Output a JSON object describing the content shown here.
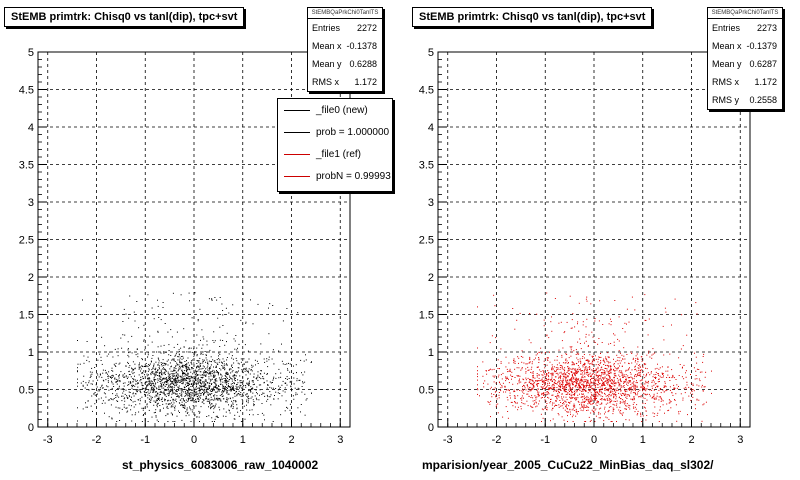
{
  "chart_data": [
    {
      "type": "scatter",
      "title": "StEMB primtrk: Chisq0 vs tanl(dip), tpc+svt",
      "xlabel": "st_physics_6083006_raw_1040002",
      "ylabel": "",
      "xlim": [
        -3.2,
        3.2
      ],
      "ylim": [
        0,
        5
      ],
      "x_ticks": [
        "-3",
        "-2",
        "-1",
        "0",
        "1",
        "2",
        "3"
      ],
      "y_ticks": [
        "0",
        "0.5",
        "1",
        "1.5",
        "2",
        "2.5",
        "3",
        "3.5",
        "4",
        "4.5",
        "5"
      ],
      "grid": true,
      "marker_color": "#000000",
      "stats": {
        "name": "StEMBQaPrkChi0TanlTS",
        "entries_label": "Entries",
        "entries": "2272",
        "mean_x_label": "Mean x",
        "mean_x": "-0.1378",
        "mean_y_label": "Mean y",
        "mean_y": "0.6288",
        "rms_x_label": "RMS x",
        "rms_x": "1.172"
      },
      "legend": {
        "placement": "top-right",
        "entries": [
          {
            "label": "_file0 (new)",
            "color": "#000000"
          },
          {
            "label": "prob = 1.000000",
            "color": "#000000"
          },
          {
            "label": "_file1 (ref)",
            "color": "#cc0000"
          },
          {
            "label": "probN = 0.99993",
            "color": "#cc0000"
          }
        ]
      }
    },
    {
      "type": "scatter",
      "title": "StEMB primtrk: Chisq0 vs tanl(dip), tpc+svt",
      "xlabel": "mparision/year_2005_CuCu22_MinBias_daq_sl302/",
      "ylabel": "",
      "xlim": [
        -3.2,
        3.2
      ],
      "ylim": [
        0,
        5
      ],
      "x_ticks": [
        "-3",
        "-2",
        "-1",
        "0",
        "1",
        "2",
        "3"
      ],
      "y_ticks": [
        "0",
        "0.5",
        "1",
        "1.5",
        "2",
        "2.5",
        "3",
        "3.5",
        "4",
        "4.5",
        "5"
      ],
      "grid": true,
      "marker_color": "#dd0000",
      "stats": {
        "name": "StEMBQaPrkChi0TanlTS",
        "entries_label": "Entries",
        "entries": "2273",
        "mean_x_label": "Mean x",
        "mean_x": "-0.1379",
        "mean_y_label": "Mean y",
        "mean_y": "0.6287",
        "rms_x_label": "RMS x",
        "rms_x": "1.172",
        "rms_y_label": "RMS y",
        "rms_y": "0.2558"
      }
    }
  ]
}
